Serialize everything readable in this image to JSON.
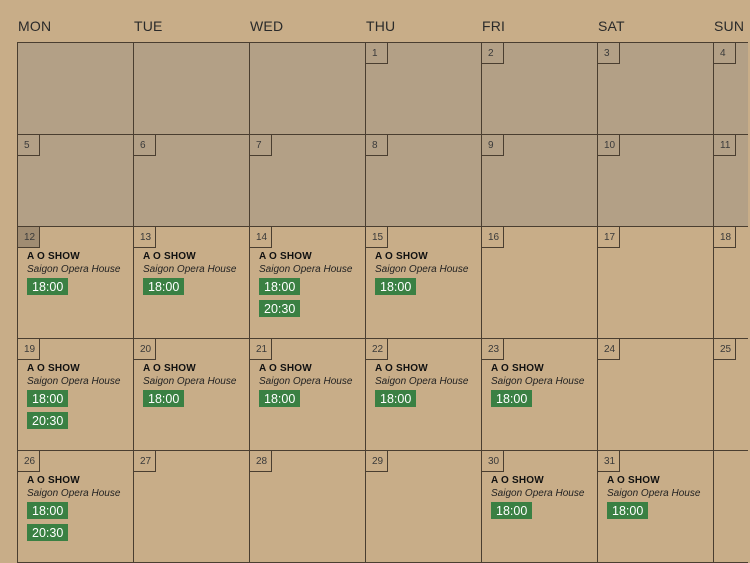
{
  "weekdays": [
    "MON",
    "TUE",
    "WED",
    "THU",
    "FRI",
    "SAT",
    "SUN"
  ],
  "colors": {
    "background": "#c8ad88",
    "past_cell": "#b3a086",
    "time_badge": "#3a8043"
  },
  "weeks": [
    [
      {
        "day": "",
        "past": true
      },
      {
        "day": "",
        "past": true
      },
      {
        "day": "",
        "past": true
      },
      {
        "day": "1",
        "past": true
      },
      {
        "day": "2",
        "past": true
      },
      {
        "day": "3",
        "past": true
      },
      {
        "day": "4",
        "past": true
      }
    ],
    [
      {
        "day": "5",
        "past": true
      },
      {
        "day": "6",
        "past": true
      },
      {
        "day": "7",
        "past": true
      },
      {
        "day": "8",
        "past": true
      },
      {
        "day": "9",
        "past": true
      },
      {
        "day": "10",
        "past": true
      },
      {
        "day": "11",
        "past": true
      }
    ],
    [
      {
        "day": "12",
        "today": true,
        "event": {
          "title": "A O SHOW",
          "venue": "Saigon Opera House",
          "times": [
            "18:00"
          ]
        }
      },
      {
        "day": "13",
        "event": {
          "title": "A O SHOW",
          "venue": "Saigon Opera House",
          "times": [
            "18:00"
          ]
        }
      },
      {
        "day": "14",
        "event": {
          "title": "A O SHOW",
          "venue": "Saigon Opera House",
          "times": [
            "18:00",
            "20:30"
          ]
        }
      },
      {
        "day": "15",
        "event": {
          "title": "A O SHOW",
          "venue": "Saigon Opera House",
          "times": [
            "18:00"
          ]
        }
      },
      {
        "day": "16"
      },
      {
        "day": "17"
      },
      {
        "day": "18"
      }
    ],
    [
      {
        "day": "19",
        "event": {
          "title": "A O SHOW",
          "venue": "Saigon Opera House",
          "times": [
            "18:00",
            "20:30"
          ]
        }
      },
      {
        "day": "20",
        "event": {
          "title": "A O SHOW",
          "venue": "Saigon Opera House",
          "times": [
            "18:00"
          ]
        }
      },
      {
        "day": "21",
        "event": {
          "title": "A O SHOW",
          "venue": "Saigon Opera House",
          "times": [
            "18:00"
          ]
        }
      },
      {
        "day": "22",
        "event": {
          "title": "A O SHOW",
          "venue": "Saigon Opera House",
          "times": [
            "18:00"
          ]
        }
      },
      {
        "day": "23",
        "event": {
          "title": "A O SHOW",
          "venue": "Saigon Opera House",
          "times": [
            "18:00"
          ]
        }
      },
      {
        "day": "24"
      },
      {
        "day": "25"
      }
    ],
    [
      {
        "day": "26",
        "event": {
          "title": "A O SHOW",
          "venue": "Saigon Opera House",
          "times": [
            "18:00",
            "20:30"
          ]
        }
      },
      {
        "day": "27"
      },
      {
        "day": "28"
      },
      {
        "day": "29"
      },
      {
        "day": "30",
        "event": {
          "title": "A O SHOW",
          "venue": "Saigon Opera House",
          "times": [
            "18:00"
          ]
        }
      },
      {
        "day": "31",
        "event": {
          "title": "A O SHOW",
          "venue": "Saigon Opera House",
          "times": [
            "18:00"
          ]
        }
      },
      {
        "day": ""
      }
    ]
  ]
}
